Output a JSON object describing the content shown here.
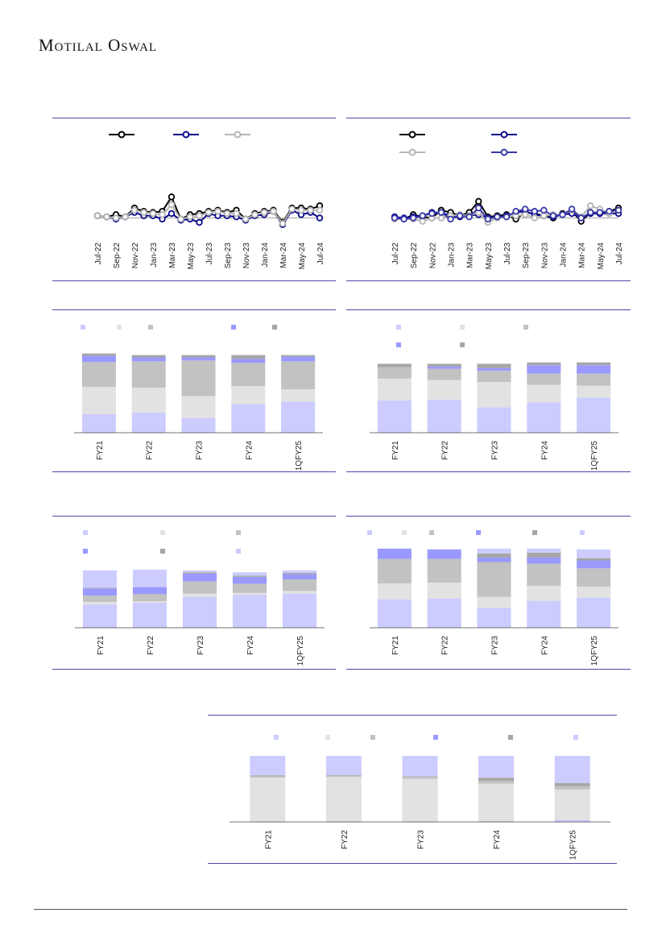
{
  "brand": "Motilal Oswal",
  "colors": {
    "black": "#000000",
    "navy": "#0a0a8c",
    "gray": "#b4b4b4",
    "open_blue": "#3a3aa8",
    "lav": "#ccccff",
    "light": "#e2e2e2",
    "mid": "#c2c2c2",
    "blue": "#9999ff",
    "dark": "#a6a6a6"
  },
  "chart_data": [
    {
      "id": "c1",
      "type": "line",
      "x": [
        "Jul-22",
        "Aug-22",
        "Sep-22",
        "Oct-22",
        "Nov-22",
        "Dec-22",
        "Jan-23",
        "Feb-23",
        "Mar-23",
        "Apr-23",
        "May-23",
        "Jun-23",
        "Jul-23",
        "Aug-23",
        "Sep-23",
        "Oct-23",
        "Nov-23",
        "Dec-23",
        "Jan-24",
        "Feb-24",
        "Mar-24",
        "Apr-24",
        "May-24",
        "Jun-24",
        "Jul-24"
      ],
      "xticklabels": [
        "Jul-22",
        "Sep-22",
        "Nov-22",
        "Jan-23",
        "Mar-23",
        "May-23",
        "Jul-23",
        "Sep-23",
        "Nov-23",
        "Jan-24",
        "Mar-24",
        "May-24",
        "Jul-24"
      ],
      "ylim": [
        -6,
        10
      ],
      "series": [
        {
          "color": "black",
          "marker": "open",
          "values": [
            1,
            0.5,
            1.5,
            0.5,
            4.5,
            3,
            2.5,
            3,
            9.5,
            -0.5,
            1.5,
            2,
            3,
            3.5,
            2.5,
            3.5,
            -0.5,
            2,
            3,
            3.5,
            -2,
            4.5,
            4.5,
            4,
            5.5
          ]
        },
        {
          "color": "navy",
          "marker": "open",
          "values": [
            1,
            0.5,
            -0.5,
            0.5,
            2.5,
            1,
            1,
            -0.5,
            2,
            -1,
            -0.5,
            -2,
            2,
            1,
            1,
            0.5,
            -1,
            1,
            1.5,
            3,
            -3,
            3.5,
            1.5,
            2.5,
            0
          ]
        },
        {
          "color": "gray",
          "marker": "open",
          "values": [
            1,
            0.5,
            0,
            0.5,
            3.5,
            2.5,
            2,
            1.5,
            6,
            -0.5,
            0.5,
            1,
            2.5,
            3,
            2,
            2,
            -0.5,
            1.5,
            2.5,
            3,
            -2.5,
            4,
            3.5,
            3.5,
            3.5
          ]
        }
      ]
    },
    {
      "id": "c2",
      "type": "line",
      "x": [
        "Jul-22",
        "Aug-22",
        "Sep-22",
        "Oct-22",
        "Nov-22",
        "Dec-22",
        "Jan-23",
        "Feb-23",
        "Mar-23",
        "Apr-23",
        "May-23",
        "Jun-23",
        "Jul-23",
        "Aug-23",
        "Sep-23",
        "Oct-23",
        "Nov-23",
        "Dec-23",
        "Jan-24",
        "Feb-24",
        "Mar-24",
        "Apr-24",
        "May-24",
        "Jun-24",
        "Jul-24"
      ],
      "xticklabels": [
        "Jul-22",
        "Sep-22",
        "Nov-22",
        "Jan-23",
        "Mar-23",
        "May-23",
        "Jul-23",
        "Sep-23",
        "Nov-23",
        "Jan-24",
        "Mar-24",
        "May-24",
        "Jul-24"
      ],
      "ylim": [
        -6,
        10
      ],
      "series": [
        {
          "color": "black",
          "marker": "open",
          "values": [
            0.5,
            -0.5,
            1.5,
            0.5,
            0,
            3.5,
            2.5,
            1,
            2.5,
            7.5,
            0.5,
            1,
            1.5,
            -0.5,
            2.5,
            2,
            1,
            0,
            2,
            3,
            -1.5,
            2.5,
            2,
            3,
            4.5
          ]
        },
        {
          "color": "navy",
          "marker": "open",
          "values": [
            0.5,
            0,
            0.5,
            1,
            2.5,
            2.5,
            1,
            0.5,
            1,
            1.5,
            0,
            0.5,
            1,
            2.5,
            3,
            1.5,
            1,
            0.5,
            1.5,
            2,
            0,
            2,
            2,
            2,
            2
          ]
        },
        {
          "color": "gray",
          "marker": "open",
          "values": [
            -0.5,
            -0.5,
            -0.5,
            -1.5,
            0,
            0,
            1,
            1.5,
            1,
            2.5,
            -2,
            0,
            0.5,
            1,
            1.5,
            0,
            1,
            1.5,
            1.5,
            3.5,
            0.5,
            5.5,
            4,
            2,
            3.5
          ]
        },
        {
          "color": "open_blue",
          "marker": "open",
          "values": [
            0,
            -0.5,
            0,
            1,
            2,
            2.5,
            -0.5,
            1,
            0.5,
            4.5,
            -0.5,
            0.5,
            0.5,
            3,
            4,
            3,
            3.5,
            1,
            1.5,
            4,
            0,
            2.5,
            2.5,
            3,
            3.5
          ]
        }
      ]
    },
    {
      "id": "c3",
      "type": "bar",
      "stacked": true,
      "categories": [
        "FY21",
        "FY22",
        "FY23",
        "FY24",
        "1QFY25"
      ],
      "segment_colors": [
        "lav",
        "light",
        "mid",
        "blue",
        "dark"
      ],
      "legend_colors": [
        "lav",
        "light",
        "mid",
        "blue",
        "dark"
      ],
      "ylim": [
        0,
        110
      ],
      "values": [
        [
          24,
          35,
          32,
          8,
          3
        ],
        [
          26,
          32,
          34,
          5,
          3
        ],
        [
          19,
          28,
          46,
          4,
          3
        ],
        [
          37,
          23,
          30,
          5,
          5
        ],
        [
          40,
          16,
          36,
          6,
          2
        ]
      ]
    },
    {
      "id": "c4",
      "type": "bar",
      "stacked": true,
      "categories": [
        "FY21",
        "FY22",
        "FY23",
        "FY24",
        "1QFY25"
      ],
      "segment_colors": [
        "lav",
        "light",
        "mid",
        "blue",
        "dark"
      ],
      "legend_colors": [
        "lav",
        "light",
        "mid",
        "blue",
        "dark"
      ],
      "ylim": [
        0,
        110
      ],
      "values": [
        [
          46,
          31,
          16,
          0,
          5
        ],
        [
          47,
          28,
          16,
          3,
          4
        ],
        [
          36,
          36,
          16,
          4,
          6
        ],
        [
          43,
          25,
          16,
          12,
          4
        ],
        [
          50,
          17,
          17,
          12,
          4
        ]
      ]
    },
    {
      "id": "c5",
      "type": "bar",
      "stacked": true,
      "categories": [
        "FY21",
        "FY22",
        "FY23",
        "FY24",
        "1QFY25"
      ],
      "segment_colors": [
        "lav",
        "light",
        "mid",
        "blue",
        "dark",
        "lav"
      ],
      "legend_colors": [
        "lav",
        "light",
        "mid",
        "blue",
        "dark",
        "lav"
      ],
      "ylim": [
        0,
        110
      ],
      "values": [
        [
          36,
          4,
          10,
          11,
          1,
          27
        ],
        [
          39,
          2,
          11,
          11,
          0,
          27
        ],
        [
          48,
          5,
          19,
          12,
          2,
          3
        ],
        [
          51,
          3,
          14,
          11,
          2,
          5
        ],
        [
          53,
          4,
          18,
          8,
          2,
          4
        ]
      ]
    },
    {
      "id": "c6",
      "type": "bar",
      "stacked": true,
      "categories": [
        "FY21",
        "FY22",
        "FY23",
        "FY24",
        "1QFY25"
      ],
      "segment_colors": [
        "lav",
        "light",
        "mid",
        "blue",
        "dark",
        "lav"
      ],
      "legend_colors": [
        "lav",
        "light",
        "mid",
        "blue",
        "dark",
        "lav"
      ],
      "ylim": [
        0,
        110
      ],
      "values": [
        [
          36,
          20,
          31,
          13,
          0,
          0
        ],
        [
          37,
          20,
          30,
          12,
          0,
          0
        ],
        [
          25,
          14,
          44,
          6,
          5,
          6
        ],
        [
          34,
          19,
          28,
          8,
          6,
          5
        ],
        [
          38,
          14,
          23,
          10,
          3,
          11
        ]
      ]
    },
    {
      "id": "c7",
      "type": "bar",
      "stacked": true,
      "categories": [
        "FY21",
        "FY22",
        "FY23",
        "FY24",
        "1QFY25"
      ],
      "segment_colors": [
        "lav",
        "light",
        "mid",
        "blue",
        "dark",
        "lav"
      ],
      "legend_colors": [
        "lav",
        "light",
        "mid",
        "blue",
        "dark",
        "lav"
      ],
      "ylim": [
        0,
        100
      ],
      "values": [
        [
          0,
          67,
          3,
          0,
          1,
          29
        ],
        [
          0,
          68,
          2,
          0,
          1,
          29
        ],
        [
          0,
          65,
          3,
          0,
          1,
          31
        ],
        [
          1,
          57,
          4,
          0,
          5,
          33
        ],
        [
          3,
          46,
          5,
          0,
          5,
          41
        ]
      ]
    }
  ]
}
